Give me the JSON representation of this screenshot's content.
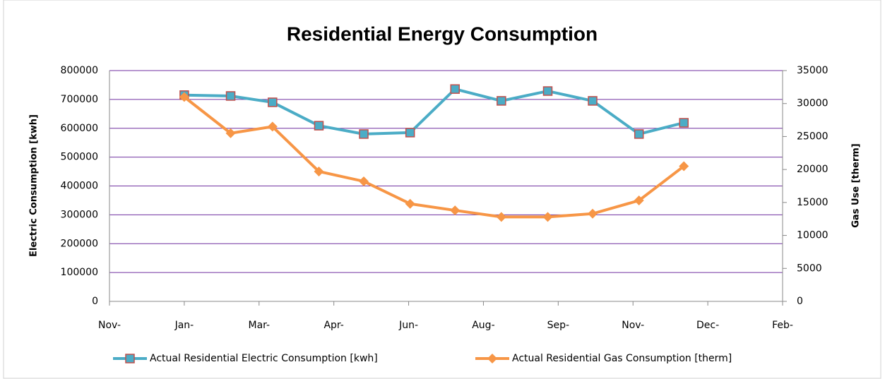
{
  "chart_data": {
    "type": "line",
    "title": "Residential Energy Consumption",
    "ylabel": "Electric Consumption [kwh]",
    "y2label": "Gas Use [therm]",
    "x": [
      50,
      81,
      109,
      140,
      170,
      201,
      231,
      262,
      293,
      323,
      354,
      384
    ],
    "xlim": [
      0,
      450
    ],
    "xticks": [
      {
        "value": 0,
        "label": "Nov-"
      },
      {
        "value": 50,
        "label": "Jan-"
      },
      {
        "value": 100,
        "label": "Mar-"
      },
      {
        "value": 150,
        "label": "Apr-"
      },
      {
        "value": 200,
        "label": "Jun-"
      },
      {
        "value": 250,
        "label": "Aug-"
      },
      {
        "value": 300,
        "label": "Sep-"
      },
      {
        "value": 350,
        "label": "Nov-"
      },
      {
        "value": 400,
        "label": "Dec-"
      },
      {
        "value": 450,
        "label": "Feb-"
      }
    ],
    "ylim": [
      0,
      800000
    ],
    "yticks": [
      0,
      100000,
      200000,
      300000,
      400000,
      500000,
      600000,
      700000,
      800000
    ],
    "y2lim": [
      0,
      35000
    ],
    "y2ticks": [
      0,
      5000,
      10000,
      15000,
      20000,
      25000,
      30000,
      35000
    ],
    "grid": true,
    "grid_color": "#7030a0",
    "legend": "bottom",
    "series": [
      {
        "name": "Actual Residential Electric Consumption [kwh]",
        "color": "#4bacc6",
        "marker": "square",
        "marker_edge": "#c0504d",
        "values": [
          715000,
          712000,
          690000,
          609000,
          580000,
          585000,
          736000,
          695000,
          729000,
          695000,
          580000,
          619000
        ]
      },
      {
        "name": "Actual Residential Gas Consumption [therm]",
        "color": "#f79646",
        "marker": "diamond",
        "axis": "y2",
        "values": [
          31000,
          25500,
          26500,
          19700,
          18200,
          14800,
          13800,
          12800,
          12800,
          13300,
          15300,
          20500
        ]
      }
    ]
  }
}
